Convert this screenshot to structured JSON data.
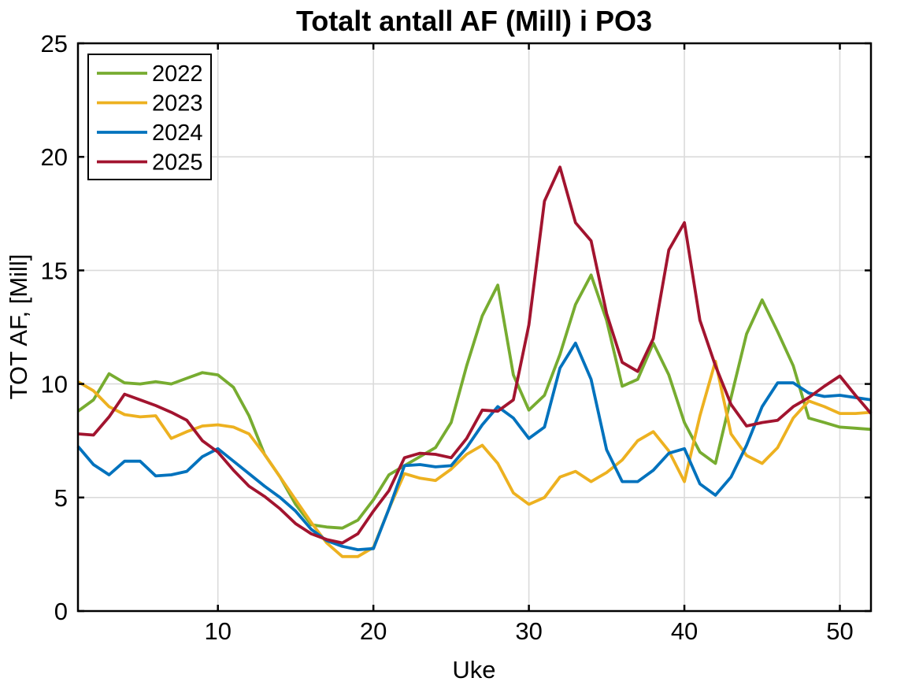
{
  "figure": {
    "background": "#ffffff",
    "axis_color": "#000000",
    "grid_color": "#dbdbdb"
  },
  "chart_data": {
    "type": "line",
    "title": "Totalt antall AF (Mill) i PO3",
    "xlabel": "Uke",
    "ylabel": "TOT AF, [Mill]",
    "xlim": [
      1,
      52
    ],
    "ylim": [
      0,
      25
    ],
    "xticks": [
      10,
      20,
      30,
      40,
      50
    ],
    "yticks": [
      0,
      5,
      10,
      15,
      20,
      25
    ],
    "grid": true,
    "legend_position": "top-left",
    "x": [
      1,
      2,
      3,
      4,
      5,
      6,
      7,
      8,
      9,
      10,
      11,
      12,
      13,
      14,
      15,
      16,
      17,
      18,
      19,
      20,
      21,
      22,
      23,
      24,
      25,
      26,
      27,
      28,
      29,
      30,
      31,
      32,
      33,
      34,
      35,
      36,
      37,
      38,
      39,
      40,
      41,
      42,
      43,
      44,
      45,
      46,
      47,
      48,
      49,
      50,
      51,
      52
    ],
    "series": [
      {
        "name": "2022",
        "color": "#77AC30",
        "values": [
          8.8,
          9.3,
          10.45,
          10.05,
          10.0,
          10.1,
          10.0,
          10.25,
          10.5,
          10.4,
          9.85,
          8.6,
          6.9,
          5.9,
          4.7,
          3.8,
          3.7,
          3.65,
          4.0,
          4.9,
          6.0,
          6.4,
          6.8,
          7.2,
          8.3,
          10.8,
          13.0,
          14.35,
          10.4,
          8.85,
          9.5,
          11.3,
          13.5,
          14.8,
          12.8,
          9.9,
          10.2,
          11.8,
          10.4,
          8.3,
          7.0,
          6.5,
          9.4,
          12.2,
          13.7,
          12.3,
          10.8,
          8.5,
          8.3,
          8.1,
          8.05,
          8.0
        ]
      },
      {
        "name": "2023",
        "color": "#EDB120",
        "values": [
          10.1,
          9.7,
          9.0,
          8.65,
          8.55,
          8.6,
          7.6,
          7.9,
          8.15,
          8.2,
          8.1,
          7.8,
          6.9,
          5.9,
          4.9,
          3.9,
          3.0,
          2.4,
          2.4,
          2.8,
          4.5,
          6.05,
          5.85,
          5.75,
          6.25,
          6.9,
          7.3,
          6.5,
          5.2,
          4.7,
          5.0,
          5.9,
          6.15,
          5.7,
          6.1,
          6.65,
          7.5,
          7.9,
          7.05,
          5.7,
          8.6,
          11.0,
          7.8,
          6.85,
          6.5,
          7.2,
          8.5,
          9.25,
          9.0,
          8.7,
          8.7,
          8.75
        ]
      },
      {
        "name": "2024",
        "color": "#0072BD",
        "values": [
          7.25,
          6.45,
          6.0,
          6.6,
          6.6,
          5.95,
          6.0,
          6.15,
          6.8,
          7.15,
          6.6,
          6.05,
          5.5,
          5.0,
          4.4,
          3.6,
          3.1,
          2.85,
          2.7,
          2.75,
          4.5,
          6.4,
          6.45,
          6.35,
          6.4,
          7.2,
          8.2,
          9.0,
          8.5,
          7.6,
          8.1,
          10.7,
          11.8,
          10.2,
          7.1,
          5.7,
          5.7,
          6.2,
          6.95,
          7.15,
          5.6,
          5.1,
          5.9,
          7.3,
          9.0,
          10.05,
          10.05,
          9.6,
          9.45,
          9.5,
          9.4,
          9.3
        ]
      },
      {
        "name": "2025",
        "color": "#A2142F",
        "values": [
          7.8,
          7.75,
          8.55,
          9.55,
          9.3,
          9.05,
          8.75,
          8.4,
          7.5,
          7.0,
          6.2,
          5.5,
          5.05,
          4.5,
          3.85,
          3.4,
          3.15,
          3.0,
          3.4,
          4.4,
          5.3,
          6.75,
          6.95,
          6.9,
          6.75,
          7.6,
          8.85,
          8.8,
          9.3,
          12.6,
          18.05,
          19.55,
          17.1,
          16.3,
          13.1,
          10.95,
          10.55,
          12.0,
          15.9,
          17.1,
          12.8,
          10.8,
          9.1,
          8.15,
          8.3,
          8.4,
          9.0,
          9.4,
          9.9,
          10.35,
          9.5,
          8.7
        ]
      }
    ]
  }
}
